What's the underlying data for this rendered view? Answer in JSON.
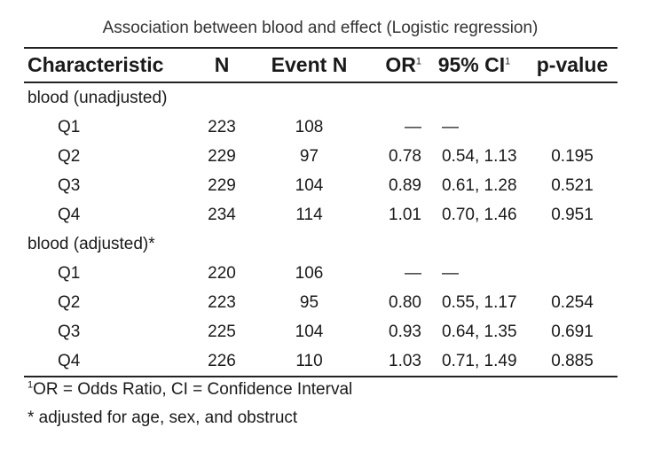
{
  "caption": "Association between blood and effect (Logistic regression)",
  "headers": {
    "characteristic": "Characteristic",
    "n": "N",
    "event_n": "Event N",
    "or": "OR",
    "or_marker": "1",
    "ci": "95% CI",
    "ci_marker": "1",
    "p_value": "p-value"
  },
  "groups": {
    "unadjusted": {
      "label": "blood (unadjusted)",
      "rows": [
        {
          "level": "Q1",
          "n": "223",
          "event_n": "108",
          "or": "—",
          "ci": "—",
          "p": ""
        },
        {
          "level": "Q2",
          "n": "229",
          "event_n": "97",
          "or": "0.78",
          "ci": "0.54, 1.13",
          "p": "0.195"
        },
        {
          "level": "Q3",
          "n": "229",
          "event_n": "104",
          "or": "0.89",
          "ci": "0.61, 1.28",
          "p": "0.521"
        },
        {
          "level": "Q4",
          "n": "234",
          "event_n": "114",
          "or": "1.01",
          "ci": "0.70, 1.46",
          "p": "0.951"
        }
      ]
    },
    "adjusted": {
      "label": "blood (adjusted)*",
      "rows": [
        {
          "level": "Q1",
          "n": "220",
          "event_n": "106",
          "or": "—",
          "ci": "—",
          "p": ""
        },
        {
          "level": "Q2",
          "n": "223",
          "event_n": "95",
          "or": "0.80",
          "ci": "0.55, 1.17",
          "p": "0.254"
        },
        {
          "level": "Q3",
          "n": "225",
          "event_n": "104",
          "or": "0.93",
          "ci": "0.64, 1.35",
          "p": "0.691"
        },
        {
          "level": "Q4",
          "n": "226",
          "event_n": "110",
          "or": "1.03",
          "ci": "0.71, 1.49",
          "p": "0.885"
        }
      ]
    }
  },
  "footnotes": {
    "note1_marker": "1",
    "note1_text": "OR = Odds Ratio, CI = Confidence Interval",
    "note2": "* adjusted for age, sex, and obstruct"
  }
}
